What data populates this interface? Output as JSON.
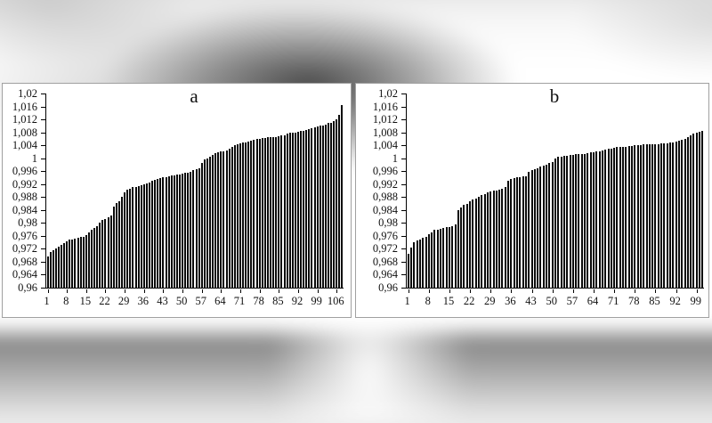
{
  "figure": {
    "bar_color": "#0b0b0b",
    "axis_color": "#000000",
    "panel_background": "#ffffff",
    "panel_border": "#a0a0a0",
    "text_color": "#111111"
  },
  "chart_data": [
    {
      "id": "a",
      "type": "bar",
      "title": "a",
      "xlabel": "",
      "ylabel": "",
      "ylim": [
        0.96,
        1.02
      ],
      "grid": false,
      "legend": "none",
      "y_ticks": [
        {
          "label": "1,02",
          "value": 1.02
        },
        {
          "label": "1,016",
          "value": 1.016
        },
        {
          "label": "1,012",
          "value": 1.012
        },
        {
          "label": "1,008",
          "value": 1.008
        },
        {
          "label": "1,004",
          "value": 1.004
        },
        {
          "label": "1",
          "value": 1.0
        },
        {
          "label": "0,996",
          "value": 0.996
        },
        {
          "label": "0,992",
          "value": 0.992
        },
        {
          "label": "0,988",
          "value": 0.988
        },
        {
          "label": "0,984",
          "value": 0.984
        },
        {
          "label": "0,98",
          "value": 0.98
        },
        {
          "label": "0,976",
          "value": 0.976
        },
        {
          "label": "0,972",
          "value": 0.972
        },
        {
          "label": "0,968",
          "value": 0.968
        },
        {
          "label": "0,964",
          "value": 0.964
        },
        {
          "label": "0,96",
          "value": 0.96
        }
      ],
      "x_ticks": [
        {
          "label": "1",
          "bar": 1
        },
        {
          "label": "8",
          "bar": 8
        },
        {
          "label": "15",
          "bar": 15
        },
        {
          "label": "22",
          "bar": 22
        },
        {
          "label": "29",
          "bar": 29
        },
        {
          "label": "36",
          "bar": 36
        },
        {
          "label": "43",
          "bar": 43
        },
        {
          "label": "50",
          "bar": 50
        },
        {
          "label": "57",
          "bar": 57
        },
        {
          "label": "64",
          "bar": 64
        },
        {
          "label": "71",
          "bar": 71
        },
        {
          "label": "78",
          "bar": 78
        },
        {
          "label": "85",
          "bar": 85
        },
        {
          "label": "92",
          "bar": 92
        },
        {
          "label": "99",
          "bar": 99
        },
        {
          "label": "106",
          "bar": 106
        }
      ],
      "values": [
        0.9695,
        0.971,
        0.9715,
        0.972,
        0.9728,
        0.9733,
        0.9738,
        0.9742,
        0.9748,
        0.975,
        0.9752,
        0.9754,
        0.9756,
        0.9758,
        0.9762,
        0.977,
        0.9778,
        0.9785,
        0.979,
        0.98,
        0.9808,
        0.9812,
        0.9818,
        0.9822,
        0.985,
        0.9862,
        0.9868,
        0.988,
        0.9895,
        0.9902,
        0.9906,
        0.991,
        0.9912,
        0.9914,
        0.9916,
        0.9918,
        0.9922,
        0.9926,
        0.993,
        0.9934,
        0.9936,
        0.9938,
        0.994,
        0.9942,
        0.9944,
        0.9946,
        0.9948,
        0.995,
        0.995,
        0.9952,
        0.9954,
        0.9956,
        0.9958,
        0.9962,
        0.9965,
        0.9968,
        0.9985,
        0.9995,
        1.0,
        1.0005,
        1.001,
        1.0015,
        1.0018,
        1.002,
        1.0022,
        1.0025,
        1.003,
        1.0035,
        1.004,
        1.0042,
        1.0045,
        1.0048,
        1.005,
        1.0052,
        1.0055,
        1.0058,
        1.006,
        1.006,
        1.0062,
        1.0062,
        1.0064,
        1.0064,
        1.0065,
        1.0066,
        1.0068,
        1.007,
        1.0072,
        1.0075,
        1.0078,
        1.008,
        1.008,
        1.0082,
        1.0085,
        1.0085,
        1.0088,
        1.009,
        1.0092,
        1.0095,
        1.0098,
        1.01,
        1.0102,
        1.0105,
        1.0108,
        1.011,
        1.0115,
        1.012,
        1.0135,
        1.0165
      ]
    },
    {
      "id": "b",
      "type": "bar",
      "title": "b",
      "xlabel": "",
      "ylabel": "",
      "ylim": [
        0.96,
        1.02
      ],
      "grid": false,
      "legend": "none",
      "y_ticks": [
        {
          "label": "1,02",
          "value": 1.02
        },
        {
          "label": "1,016",
          "value": 1.016
        },
        {
          "label": "1,012",
          "value": 1.012
        },
        {
          "label": "1,008",
          "value": 1.008
        },
        {
          "label": "1,004",
          "value": 1.004
        },
        {
          "label": "1",
          "value": 1.0
        },
        {
          "label": "0,996",
          "value": 0.996
        },
        {
          "label": "0,992",
          "value": 0.992
        },
        {
          "label": "0,988",
          "value": 0.988
        },
        {
          "label": "0,984",
          "value": 0.984
        },
        {
          "label": "0,98",
          "value": 0.98
        },
        {
          "label": "0,976",
          "value": 0.976
        },
        {
          "label": "0,972",
          "value": 0.972
        },
        {
          "label": "0,968",
          "value": 0.968
        },
        {
          "label": "0,964",
          "value": 0.964
        },
        {
          "label": "0,96",
          "value": 0.96
        }
      ],
      "x_ticks": [
        {
          "label": "1",
          "bar": 1
        },
        {
          "label": "8",
          "bar": 8
        },
        {
          "label": "15",
          "bar": 15
        },
        {
          "label": "22",
          "bar": 22
        },
        {
          "label": "29",
          "bar": 29
        },
        {
          "label": "36",
          "bar": 36
        },
        {
          "label": "43",
          "bar": 43
        },
        {
          "label": "50",
          "bar": 50
        },
        {
          "label": "57",
          "bar": 57
        },
        {
          "label": "64",
          "bar": 64
        },
        {
          "label": "71",
          "bar": 71
        },
        {
          "label": "78",
          "bar": 78
        },
        {
          "label": "85",
          "bar": 85
        },
        {
          "label": "92",
          "bar": 92
        },
        {
          "label": "99",
          "bar": 99
        }
      ],
      "values": [
        0.9705,
        0.9725,
        0.974,
        0.9746,
        0.975,
        0.9754,
        0.9758,
        0.9764,
        0.9772,
        0.9778,
        0.978,
        0.9782,
        0.9784,
        0.9786,
        0.9788,
        0.979,
        0.9795,
        0.984,
        0.9848,
        0.9855,
        0.986,
        0.9868,
        0.9872,
        0.9876,
        0.988,
        0.9885,
        0.9888,
        0.9895,
        0.9898,
        0.99,
        0.99,
        0.9902,
        0.9905,
        0.991,
        0.993,
        0.9935,
        0.9938,
        0.994,
        0.9942,
        0.9944,
        0.9945,
        0.9958,
        0.9962,
        0.9966,
        0.997,
        0.9974,
        0.9978,
        0.998,
        0.9984,
        0.9988,
        1.0,
        1.0004,
        1.0006,
        1.0008,
        1.0008,
        1.001,
        1.001,
        1.0012,
        1.0012,
        1.0014,
        1.0014,
        1.0016,
        1.0018,
        1.0018,
        1.002,
        1.0022,
        1.0025,
        1.0028,
        1.003,
        1.003,
        1.0032,
        1.0034,
        1.0035,
        1.0036,
        1.0036,
        1.0038,
        1.0038,
        1.004,
        1.004,
        1.004,
        1.0042,
        1.0042,
        1.0042,
        1.0044,
        1.0044,
        1.0044,
        1.0045,
        1.0046,
        1.0046,
        1.0048,
        1.005,
        1.0052,
        1.0055,
        1.0058,
        1.006,
        1.0065,
        1.007,
        1.0075,
        1.008,
        1.0082,
        1.0085
      ]
    }
  ]
}
